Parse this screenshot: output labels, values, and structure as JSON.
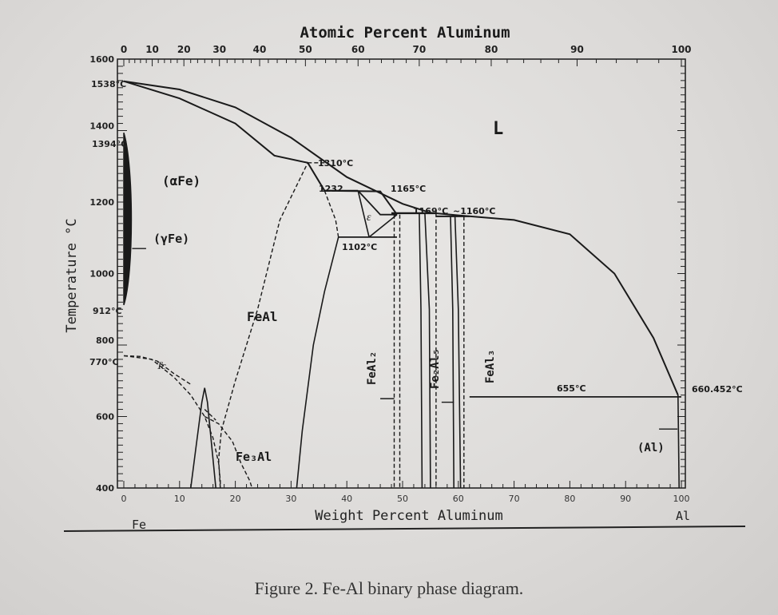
{
  "chart_data": {
    "type": "phase-diagram",
    "top_axis": {
      "label": "Atomic Percent Aluminum",
      "ticks": [
        "0",
        "10",
        "20",
        "30",
        "40",
        "50",
        "60",
        "70",
        "80",
        "90",
        "100"
      ]
    },
    "bottom_axis": {
      "label": "Weight Percent Aluminum",
      "ticks": [
        "0",
        "10",
        "20",
        "30",
        "40",
        "50",
        "60",
        "70",
        "80",
        "90",
        "100"
      ],
      "range": [
        0,
        100
      ]
    },
    "left_axis": {
      "label": "Temperature °C",
      "ticks": [
        "1600",
        "1400",
        "1200",
        "1000",
        "800",
        "600",
        "400"
      ],
      "range": [
        400,
        1600
      ]
    },
    "element_labels": {
      "left": "Fe",
      "right": "Al"
    },
    "temperature_labels": [
      "1538°C",
      "1394°C",
      "912°C",
      "770°C"
    ],
    "region_labels": {
      "liquid": "L",
      "alpha_fe": "(αFe)",
      "gamma_fe": "(γFe)",
      "feal": "FeAl",
      "fe3al": "Fe₃Al",
      "epsilon": "ε",
      "feal2": "FeAl₂",
      "fe2al5": "Fe₂Al₅",
      "feal3": "FeAl₃",
      "al": "(Al)",
      "tc": "Tc"
    },
    "annotations": [
      "1310°C",
      "1232",
      "1165°C",
      "1169°C",
      "~1160°C",
      "1102°C",
      "655°C",
      "660.452°C"
    ],
    "series": [
      {
        "name": "liquidus",
        "points": [
          [
            0,
            1538
          ],
          [
            10,
            1515
          ],
          [
            20,
            1465
          ],
          [
            30,
            1380
          ],
          [
            40,
            1270
          ],
          [
            50,
            1195
          ],
          [
            55,
            1170
          ],
          [
            60,
            1163
          ],
          [
            70,
            1150
          ],
          [
            80,
            1110
          ],
          [
            88,
            1000
          ],
          [
            95,
            820
          ],
          [
            99.4,
            660
          ]
        ]
      },
      {
        "name": "solidus",
        "points": [
          [
            0,
            1538
          ],
          [
            10,
            1490
          ],
          [
            20,
            1420
          ],
          [
            27,
            1330
          ],
          [
            33,
            1310
          ],
          [
            36,
            1232
          ],
          [
            46,
            1230
          ],
          [
            49,
            1165
          ]
        ]
      },
      {
        "name": "eutectic_655",
        "points": [
          [
            62,
            655
          ],
          [
            100,
            655
          ]
        ]
      }
    ]
  },
  "caption": "Figure 2. Fe-Al binary phase diagram."
}
